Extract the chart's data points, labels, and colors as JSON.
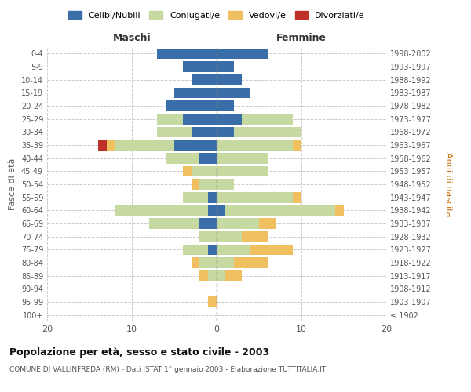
{
  "age_groups": [
    "100+",
    "95-99",
    "90-94",
    "85-89",
    "80-84",
    "75-79",
    "70-74",
    "65-69",
    "60-64",
    "55-59",
    "50-54",
    "45-49",
    "40-44",
    "35-39",
    "30-34",
    "25-29",
    "20-24",
    "15-19",
    "10-14",
    "5-9",
    "0-4"
  ],
  "birth_years": [
    "≤ 1902",
    "1903-1907",
    "1908-1912",
    "1913-1917",
    "1918-1922",
    "1923-1927",
    "1928-1932",
    "1933-1937",
    "1938-1942",
    "1943-1947",
    "1948-1952",
    "1953-1957",
    "1958-1962",
    "1963-1967",
    "1968-1972",
    "1973-1977",
    "1978-1982",
    "1983-1987",
    "1988-1992",
    "1993-1997",
    "1998-2002"
  ],
  "male": {
    "celibi": [
      0,
      0,
      0,
      0,
      0,
      1,
      0,
      2,
      1,
      1,
      0,
      0,
      2,
      5,
      3,
      4,
      6,
      5,
      3,
      4,
      7
    ],
    "coniugati": [
      0,
      0,
      0,
      1,
      2,
      3,
      2,
      6,
      11,
      3,
      2,
      3,
      4,
      7,
      4,
      3,
      0,
      0,
      0,
      0,
      0
    ],
    "vedovi": [
      0,
      1,
      0,
      1,
      1,
      0,
      0,
      0,
      0,
      0,
      1,
      1,
      0,
      1,
      0,
      0,
      0,
      0,
      0,
      0,
      0
    ],
    "divorziati": [
      0,
      0,
      0,
      0,
      0,
      0,
      0,
      0,
      0,
      0,
      0,
      0,
      0,
      1,
      0,
      0,
      0,
      0,
      0,
      0,
      0
    ]
  },
  "female": {
    "nubili": [
      0,
      0,
      0,
      0,
      0,
      0,
      0,
      0,
      1,
      0,
      0,
      0,
      0,
      0,
      2,
      3,
      2,
      4,
      3,
      2,
      6
    ],
    "coniugate": [
      0,
      0,
      0,
      1,
      2,
      4,
      3,
      5,
      13,
      9,
      2,
      6,
      6,
      9,
      8,
      6,
      0,
      0,
      0,
      0,
      0
    ],
    "vedove": [
      0,
      0,
      0,
      2,
      4,
      5,
      3,
      2,
      1,
      1,
      0,
      0,
      0,
      1,
      0,
      0,
      0,
      0,
      0,
      0,
      0
    ],
    "divorziate": [
      0,
      0,
      0,
      0,
      0,
      0,
      0,
      0,
      0,
      0,
      0,
      0,
      0,
      0,
      0,
      0,
      0,
      0,
      0,
      0,
      0
    ]
  },
  "colors": {
    "celibi_nubili": "#3a6ea8",
    "coniugati": "#c5d9a0",
    "vedovi": "#f0c060",
    "divorziati": "#c0302a"
  },
  "xlim": 20,
  "title": "Popolazione per età, sesso e stato civile - 2003",
  "subtitle": "COMUNE DI VALLINFREDA (RM) - Dati ISTAT 1° gennaio 2003 - Elaborazione TUTTITALIA.IT",
  "ylabel_left": "Fasce di età",
  "ylabel_right": "Anni di nascita",
  "xlabel_left": "Maschi",
  "xlabel_right": "Femmine"
}
